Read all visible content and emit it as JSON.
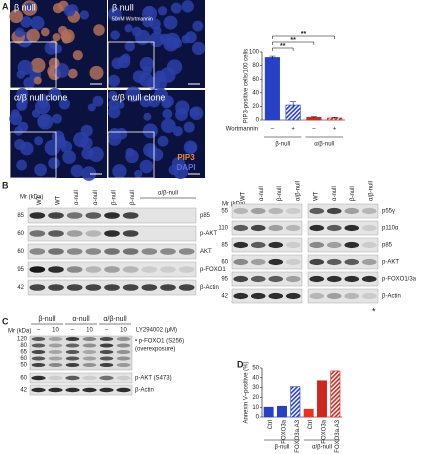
{
  "panel_a": {
    "letter": "A",
    "images": [
      "β null",
      "β null",
      "α/β null clone",
      "α/β null clone"
    ],
    "treatment": "50nM Wortmannin",
    "stain_labels": [
      "PIP3",
      "DAPI"
    ]
  },
  "chart_data": [
    {
      "type": "bar",
      "ylabel": "PIP3-positive cells/100 cells",
      "categories": [
        "–",
        "+",
        "–",
        "+"
      ],
      "row_label": "Wortmannin",
      "groups": [
        "β-null",
        "α/β-null"
      ],
      "values": [
        92,
        22,
        4,
        3
      ],
      "errors": [
        2,
        5,
        1,
        1
      ],
      "colors": [
        "#2741c4",
        "#2741c4",
        "#d0281e",
        "#d0281e"
      ],
      "hatched": [
        false,
        true,
        false,
        true
      ],
      "significance": [
        "**",
        "**",
        "**"
      ],
      "ylim": [
        0,
        100
      ],
      "yticks": [
        0,
        20,
        40,
        60,
        80,
        100
      ]
    },
    {
      "type": "bar",
      "letter": "D",
      "ylabel": "Annexin V–positive (%)",
      "categories": [
        "Ctrl",
        "FOXO3a",
        "FOXO3a.A3",
        "Ctrl",
        "FOXO3a",
        "FOXO3a.A3"
      ],
      "groups": [
        "β-null",
        "α/β-null"
      ],
      "values": [
        10,
        11,
        31,
        8,
        37,
        47
      ],
      "colors": [
        "#2741c4",
        "#2741c4",
        "#2741c4",
        "#e8321e",
        "#d0281e",
        "#d0281e"
      ],
      "hatched": [
        false,
        false,
        true,
        false,
        false,
        true
      ],
      "ylim": [
        0,
        50
      ],
      "yticks": [
        0,
        10,
        20,
        30,
        40,
        50
      ]
    }
  ],
  "panel_b": {
    "letter": "B",
    "mr": "Mr (kDa)",
    "left": {
      "lanes": [
        "WT",
        "WT",
        "α-null",
        "α-null",
        "β-null",
        "β-null"
      ],
      "lane_group": "α/β-null",
      "rows": [
        {
          "kda": 85,
          "label": "p85"
        },
        {
          "kda": 60,
          "label": "p-AKT"
        },
        {
          "kda": 60,
          "label": "AKT"
        },
        {
          "kda": 95,
          "label": "p-FOXO1"
        },
        {
          "kda": 42,
          "label": "β-Actin"
        }
      ]
    },
    "right": {
      "lanes": [
        "WT",
        "α-null",
        "β-null",
        "α/β-null",
        "WT",
        "α-null",
        "β-null",
        "α/β-null"
      ],
      "note": "*",
      "rows": [
        {
          "kda": 55,
          "label": "p55γ"
        },
        {
          "kda": 110,
          "label": "p110α"
        },
        {
          "kda": 85,
          "label": "p85"
        },
        {
          "kda": 60,
          "label": "p-AKT"
        },
        {
          "kda": 95,
          "label": "p-FOXO1/3a"
        },
        {
          "kda": 42,
          "label": "β-Actin"
        }
      ]
    }
  },
  "panel_c": {
    "letter": "C",
    "mr": "Mr (kDa)",
    "groups": [
      "β-null",
      "α-null",
      "α/β-null"
    ],
    "treatment": "LY294002 (μM)",
    "lanes": [
      "–",
      "10",
      "–",
      "10",
      "–",
      "10"
    ],
    "markers": [
      120,
      80,
      65,
      60,
      50
    ],
    "akt_mr": 60,
    "actin_mr": 42,
    "labels": [
      "• p-FOXO1 (S256)",
      "(overexposure)",
      "p-AKT (S473)",
      "β-Actin"
    ]
  }
}
